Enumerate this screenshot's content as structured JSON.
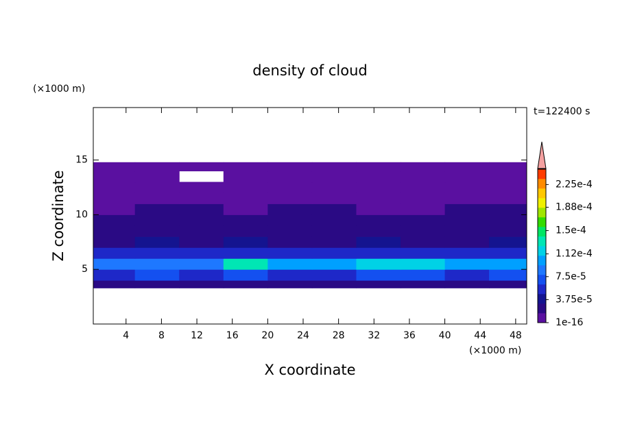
{
  "chart_data": {
    "type": "contour",
    "title": "density of cloud",
    "x_label": "X coordinate",
    "y_label": "Z coordinate",
    "x_unit": "(×1000 m)",
    "y_unit": "(×1000 m)",
    "time_label": "t=122400 s",
    "xlim": [
      0.3,
      49.25
    ],
    "ylim": [
      0,
      19.8
    ],
    "xticks": [
      4,
      8,
      12,
      16,
      20,
      24,
      28,
      32,
      36,
      40,
      44,
      48
    ],
    "yticks": [
      5,
      10,
      15
    ],
    "x": [
      0,
      5,
      10,
      15,
      20,
      25,
      30,
      35,
      40,
      45,
      50
    ],
    "z": [
      3.3,
      4,
      5,
      6,
      7,
      8,
      9,
      10,
      11,
      12,
      13,
      14,
      14.8
    ],
    "values": [
      [
        2.5e-05,
        2.5e-05,
        2.5e-05,
        2.5e-05,
        2.5e-05,
        2.5e-05,
        2.5e-05,
        2.5e-05,
        2.5e-05,
        2.5e-05
      ],
      [
        6e-05,
        6.5e-05,
        6e-05,
        7e-05,
        6e-05,
        6e-05,
        6.5e-05,
        6.5e-05,
        6e-05,
        7e-05
      ],
      [
        9e-05,
        8.5e-05,
        9e-05,
        0.00014,
        0.000105,
        9.5e-05,
        0.00011,
        0.000115,
        0.000105,
        9.5e-05
      ],
      [
        5e-05,
        5.5e-05,
        5e-05,
        6e-05,
        5.5e-05,
        5e-05,
        5.5e-05,
        6e-05,
        5.5e-05,
        5e-05
      ],
      [
        3e-05,
        3.5e-05,
        3e-05,
        3.5e-05,
        3e-05,
        3e-05,
        3.5e-05,
        3e-05,
        3e-05,
        3.5e-05
      ],
      [
        2.5e-05,
        2.5e-05,
        2.5e-05,
        2.5e-05,
        2.5e-05,
        2.5e-05,
        2.5e-05,
        2.5e-05,
        2.5e-05,
        2.5e-05
      ],
      [
        2e-05,
        2e-05,
        2e-05,
        2.2e-05,
        2e-05,
        2e-05,
        2.2e-05,
        2e-05,
        2e-05,
        2e-05
      ],
      [
        1.5e-05,
        1.9e-05,
        2e-05,
        1.5e-05,
        1.9e-05,
        2e-05,
        1.5e-05,
        1.2e-05,
        1.9e-05,
        2e-05
      ],
      [
        5e-06,
        5e-06,
        5e-06,
        5e-06,
        5e-06,
        5e-06,
        5e-06,
        5e-06,
        5e-06,
        5e-06
      ],
      [
        5e-06,
        5e-06,
        5e-06,
        5e-06,
        5e-06,
        5e-06,
        5e-06,
        5e-06,
        5e-06,
        5e-06
      ],
      [
        5e-06,
        5e-06,
        null,
        5e-06,
        5e-06,
        5e-06,
        5e-06,
        5e-06,
        5e-06,
        5e-06
      ],
      [
        5e-06,
        5e-06,
        5e-06,
        5e-06,
        5e-06,
        5e-06,
        5e-06,
        5e-06,
        5e-06,
        5e-06
      ]
    ],
    "clim": [
      1e-16,
      0.00025
    ],
    "colors": [
      "#5a10a0",
      "#2a0a84",
      "#141490",
      "#1e28c8",
      "#1450f0",
      "#1e78ff",
      "#00a0ff",
      "#00d2e6",
      "#00e6b4",
      "#00e664",
      "#32dc00",
      "#a0e600",
      "#f0f000",
      "#ffc800",
      "#ff8c00",
      "#ff3c00"
    ],
    "colorbar_ticks": [
      {
        "value": 1e-16,
        "label": "1e-16"
      },
      {
        "value": 3.75e-05,
        "label": "3.75e-5"
      },
      {
        "value": 7.5e-05,
        "label": "7.5e-5"
      },
      {
        "value": 0.000112,
        "label": "1.12e-4"
      },
      {
        "value": 0.00015,
        "label": "1.5e-4"
      },
      {
        "value": 0.000188,
        "label": "1.88e-4"
      },
      {
        "value": 0.000225,
        "label": "2.25e-4"
      }
    ]
  }
}
